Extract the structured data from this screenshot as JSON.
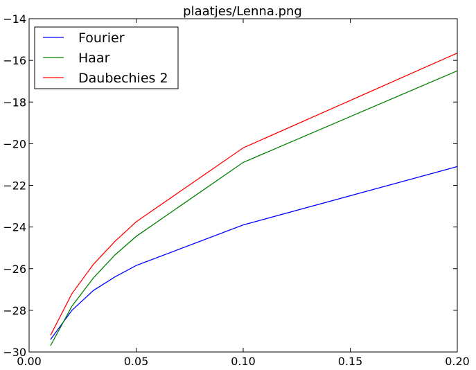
{
  "chart_data": {
    "type": "line",
    "title": "plaatjes/Lenna.png",
    "xlabel": "",
    "ylabel": "",
    "xlim": [
      0.0,
      0.2
    ],
    "ylim": [
      -30,
      -14
    ],
    "xticks": [
      0.0,
      0.05,
      0.1,
      0.15,
      0.2
    ],
    "xtick_labels": [
      "0.00",
      "0.05",
      "0.10",
      "0.15",
      "0.20"
    ],
    "yticks": [
      -30,
      -28,
      -26,
      -24,
      -22,
      -20,
      -18,
      -16,
      -14
    ],
    "ytick_labels": [
      "−30",
      "−28",
      "−26",
      "−24",
      "−22",
      "−20",
      "−18",
      "−16",
      "−14"
    ],
    "grid": false,
    "legend_position": "top-left",
    "x": [
      0.01,
      0.02,
      0.03,
      0.04,
      0.05,
      0.1,
      0.2
    ],
    "series": [
      {
        "name": "Fourier",
        "color": "#0000ff",
        "values": [
          -29.4,
          -28.0,
          -27.05,
          -26.4,
          -25.85,
          -23.9,
          -21.1
        ]
      },
      {
        "name": "Haar",
        "color": "#008000",
        "values": [
          -29.7,
          -27.8,
          -26.45,
          -25.35,
          -24.45,
          -20.9,
          -16.5
        ]
      },
      {
        "name": "Daubechies 2",
        "color": "#ff0000",
        "values": [
          -29.2,
          -27.2,
          -25.8,
          -24.7,
          -23.75,
          -20.2,
          -15.65
        ]
      }
    ]
  }
}
